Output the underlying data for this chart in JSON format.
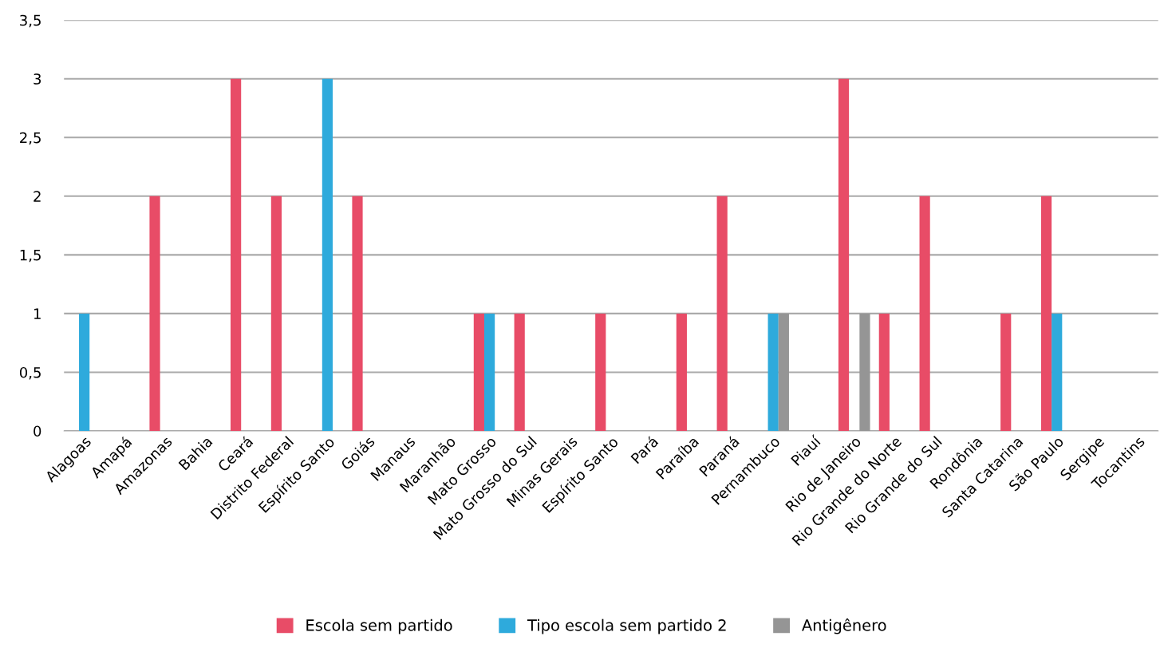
{
  "chart_data": {
    "type": "bar",
    "categories": [
      "Alagoas",
      "Amapá",
      "Amazonas",
      "Bahia",
      "Ceará",
      "Distrito Federal",
      "Espírito Santo",
      "Goiás",
      "Manaus",
      "Maranhão",
      "Mato Grosso",
      "Mato Grosso do Sul",
      "Minas Gerais",
      "Espírito Santo",
      "Pará",
      "Paraíba",
      "Paraná",
      "Pernambuco",
      "Piauí",
      "Rio de Janeiro",
      "Rio Grande do Norte",
      "Rio Grande do Sul",
      "Rondônia",
      "Santa Catarina",
      "São Paulo",
      "Sergipe",
      "Tocantins"
    ],
    "series": [
      {
        "name": "Escola sem partido",
        "color": "#e84c67",
        "values": [
          0,
          0,
          2,
          0,
          3,
          2,
          0,
          2,
          0,
          0,
          1,
          1,
          0,
          1,
          0,
          1,
          2,
          0,
          0,
          3,
          1,
          2,
          0,
          1,
          2,
          0,
          0
        ]
      },
      {
        "name": "Tipo escola sem partido 2",
        "color": "#2eaadc",
        "values": [
          1,
          0,
          0,
          0,
          0,
          0,
          3,
          0,
          0,
          0,
          1,
          0,
          0,
          0,
          0,
          0,
          0,
          1,
          0,
          0,
          0,
          0,
          0,
          0,
          1,
          0,
          0
        ]
      },
      {
        "name": "Antigênero",
        "color": "#959595",
        "values": [
          0,
          0,
          0,
          0,
          0,
          0,
          0,
          0,
          0,
          0,
          0,
          0,
          0,
          0,
          0,
          0,
          0,
          1,
          0,
          1,
          0,
          0,
          0,
          0,
          0,
          0,
          0
        ]
      }
    ],
    "ylim": [
      0,
      3.5
    ],
    "yticks": [
      0,
      {
        "value": 0.5,
        "label": "0,5"
      },
      1,
      {
        "value": 1.5,
        "label": "1,5"
      },
      2,
      {
        "value": 2.5,
        "label": "2,5"
      },
      3,
      {
        "value": 3.5,
        "label": "3,5"
      }
    ],
    "grid": "y",
    "legend": "bottom"
  }
}
